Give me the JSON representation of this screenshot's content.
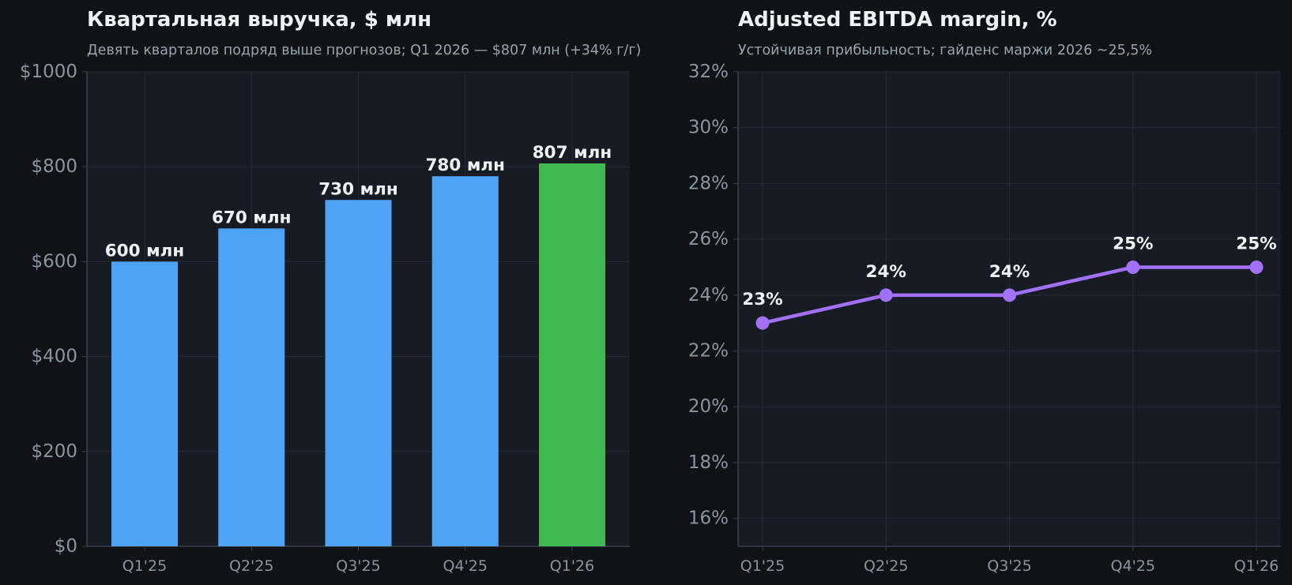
{
  "colors": {
    "page_bg": "#0f1318",
    "plot_bg": "#171b23",
    "grid": "#262c36",
    "axis": "#3a414c",
    "text": "#f0f3f6",
    "muted": "#8b949e",
    "bar": "#4fa3f5",
    "bar_highlight": "#3fb950",
    "line": "#a371f7"
  },
  "chart_data": [
    {
      "type": "bar",
      "title": "Квартальная выручка, $ млн",
      "subtitle": "Девять кварталов подряд выше прогнозов; Q1 2026 — $807 млн (+34% г/г)",
      "categories": [
        "Q1'25",
        "Q2'25",
        "Q3'25",
        "Q4'25",
        "Q1'26"
      ],
      "values": [
        600,
        670,
        730,
        780,
        807
      ],
      "value_labels": [
        "600 млн",
        "670 млн",
        "730 млн",
        "780 млн",
        "807 млн"
      ],
      "highlight_index": 4,
      "ylim": [
        0,
        1000
      ],
      "yticks": [
        0,
        200,
        400,
        600,
        800,
        1000
      ],
      "ytick_labels": [
        "$0",
        "$200",
        "$400",
        "$600",
        "$800",
        "$1000"
      ],
      "grid": true
    },
    {
      "type": "line",
      "title": "Adjusted EBITDA margin, %",
      "subtitle": "Устойчивая прибыльность; гайденс маржи 2026 ~25,5%",
      "categories": [
        "Q1'25",
        "Q2'25",
        "Q3'25",
        "Q4'25",
        "Q1'26"
      ],
      "values": [
        23,
        24,
        24,
        25,
        25
      ],
      "value_labels": [
        "23%",
        "24%",
        "24%",
        "25%",
        "25%"
      ],
      "ylim": [
        15,
        32
      ],
      "yticks": [
        16,
        18,
        20,
        22,
        24,
        26,
        28,
        30,
        32
      ],
      "ytick_labels": [
        "16%",
        "18%",
        "20%",
        "22%",
        "24%",
        "26%",
        "28%",
        "30%",
        "32%"
      ],
      "grid": true
    }
  ]
}
